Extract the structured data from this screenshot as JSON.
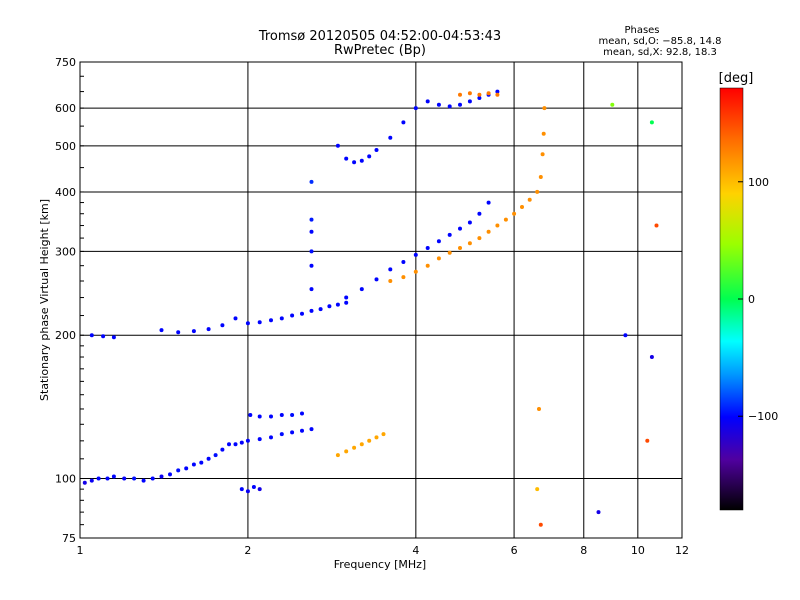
{
  "chart_data": {
    "type": "scatter",
    "title": "Tromsø 20120505 04:52:00-04:53:43",
    "subtitle": "RwPretec (Bp)",
    "xlabel": "Frequency [MHz]",
    "ylabel": "Stationary phase Virtual Height [km]",
    "x_scale": "log",
    "y_scale": "log",
    "xlim": [
      1,
      12
    ],
    "ylim": [
      75,
      750
    ],
    "x_ticks": [
      1,
      2,
      4,
      6,
      8,
      10,
      12
    ],
    "x_tick_labels": [
      "1",
      "2",
      "4",
      "6",
      "8",
      "10",
      "12"
    ],
    "y_ticks": [
      75,
      100,
      200,
      300,
      400,
      500,
      600,
      750
    ],
    "y_tick_labels": [
      "75",
      "100",
      "200",
      "300",
      "400",
      "500",
      "600",
      "750"
    ],
    "grid": true,
    "phases_box": {
      "heading": "Phases",
      "line1": "mean, sd,O: −85.8, 14.8",
      "line2": "mean, sd,X:  92.8, 18.3"
    },
    "colorbar": {
      "label": "[deg]",
      "range": [
        -180,
        180
      ],
      "ticks": [
        100,
        0,
        -100
      ],
      "tick_labels": [
        "100",
        "0",
        "−100"
      ],
      "placement": "right"
    },
    "points": [
      [
        1.02,
        98,
        -110
      ],
      [
        1.05,
        99,
        -105
      ],
      [
        1.08,
        100,
        -100
      ],
      [
        1.12,
        100,
        -100
      ],
      [
        1.15,
        101,
        -100
      ],
      [
        1.2,
        100,
        -102
      ],
      [
        1.25,
        100,
        -98
      ],
      [
        1.3,
        99,
        -100
      ],
      [
        1.35,
        100,
        -100
      ],
      [
        1.4,
        101,
        -105
      ],
      [
        1.45,
        102,
        -100
      ],
      [
        1.5,
        104,
        -98
      ],
      [
        1.55,
        105,
        -100
      ],
      [
        1.6,
        107,
        -100
      ],
      [
        1.65,
        108,
        -100
      ],
      [
        1.7,
        110,
        -100
      ],
      [
        1.75,
        112,
        -98
      ],
      [
        1.8,
        115,
        -100
      ],
      [
        1.85,
        118,
        -100
      ],
      [
        1.9,
        118,
        -100
      ],
      [
        1.95,
        119,
        -102
      ],
      [
        2.0,
        120,
        -100
      ],
      [
        2.1,
        121,
        -100
      ],
      [
        2.2,
        122,
        -100
      ],
      [
        2.3,
        124,
        -98
      ],
      [
        2.4,
        125,
        -100
      ],
      [
        2.5,
        126,
        -100
      ],
      [
        2.6,
        127,
        -100
      ],
      [
        1.95,
        95,
        -100
      ],
      [
        2.0,
        94,
        -105
      ],
      [
        2.05,
        96,
        -100
      ],
      [
        2.1,
        95,
        -110
      ],
      [
        2.02,
        136,
        -100
      ],
      [
        2.1,
        135,
        -100
      ],
      [
        2.2,
        135,
        -100
      ],
      [
        2.3,
        136,
        -100
      ],
      [
        2.4,
        136,
        -98
      ],
      [
        2.5,
        137,
        -100
      ],
      [
        2.9,
        112,
        110
      ],
      [
        3.0,
        114,
        110
      ],
      [
        3.1,
        116,
        110
      ],
      [
        3.2,
        118,
        110
      ],
      [
        3.3,
        120,
        110
      ],
      [
        3.4,
        122,
        110
      ],
      [
        3.5,
        124,
        110
      ],
      [
        1.4,
        205,
        -100
      ],
      [
        1.5,
        203,
        -100
      ],
      [
        1.6,
        204,
        -100
      ],
      [
        1.7,
        206,
        -100
      ],
      [
        1.8,
        210,
        -100
      ],
      [
        1.9,
        217,
        -100
      ],
      [
        2.0,
        212,
        -100
      ],
      [
        2.1,
        213,
        -100
      ],
      [
        2.2,
        215,
        -100
      ],
      [
        2.3,
        217,
        -100
      ],
      [
        2.4,
        220,
        -100
      ],
      [
        2.5,
        222,
        -100
      ],
      [
        2.6,
        225,
        -100
      ],
      [
        2.7,
        227,
        -100
      ],
      [
        2.8,
        230,
        -100
      ],
      [
        2.9,
        232,
        -100
      ],
      [
        3.0,
        234,
        -100
      ],
      [
        2.6,
        250,
        -100
      ],
      [
        2.6,
        300,
        -98
      ],
      [
        2.6,
        350,
        -95
      ],
      [
        2.6,
        420,
        -90
      ],
      [
        2.6,
        280,
        -100
      ],
      [
        2.6,
        330,
        -100
      ],
      [
        3.0,
        240,
        -100
      ],
      [
        3.2,
        250,
        -100
      ],
      [
        3.4,
        262,
        -100
      ],
      [
        3.6,
        275,
        -100
      ],
      [
        3.8,
        285,
        -100
      ],
      [
        4.0,
        295,
        -100
      ],
      [
        4.2,
        305,
        -100
      ],
      [
        4.4,
        315,
        -100
      ],
      [
        4.6,
        325,
        -100
      ],
      [
        4.8,
        335,
        -100
      ],
      [
        5.0,
        345,
        -100
      ],
      [
        5.2,
        360,
        -100
      ],
      [
        5.4,
        380,
        -100
      ],
      [
        3.6,
        260,
        120
      ],
      [
        3.8,
        265,
        120
      ],
      [
        4.0,
        272,
        120
      ],
      [
        4.2,
        280,
        120
      ],
      [
        4.4,
        290,
        120
      ],
      [
        4.6,
        298,
        120
      ],
      [
        4.8,
        305,
        120
      ],
      [
        5.0,
        312,
        120
      ],
      [
        5.2,
        320,
        120
      ],
      [
        5.4,
        330,
        120
      ],
      [
        5.6,
        340,
        120
      ],
      [
        5.8,
        350,
        120
      ],
      [
        6.0,
        360,
        120
      ],
      [
        6.2,
        372,
        120
      ],
      [
        6.4,
        385,
        120
      ],
      [
        6.6,
        400,
        120
      ],
      [
        6.7,
        430,
        120
      ],
      [
        6.75,
        480,
        120
      ],
      [
        6.78,
        530,
        120
      ],
      [
        6.8,
        600,
        120
      ],
      [
        2.9,
        500,
        -100
      ],
      [
        3.0,
        470,
        -100
      ],
      [
        3.1,
        462,
        -100
      ],
      [
        3.2,
        465,
        -100
      ],
      [
        3.3,
        475,
        -100
      ],
      [
        3.4,
        490,
        -100
      ],
      [
        3.6,
        520,
        -100
      ],
      [
        3.8,
        560,
        -100
      ],
      [
        4.0,
        600,
        -100
      ],
      [
        4.2,
        620,
        -100
      ],
      [
        4.4,
        610,
        -100
      ],
      [
        4.6,
        605,
        -100
      ],
      [
        4.8,
        610,
        -100
      ],
      [
        5.0,
        620,
        -100
      ],
      [
        5.2,
        630,
        -100
      ],
      [
        5.4,
        640,
        -100
      ],
      [
        5.6,
        650,
        -100
      ],
      [
        4.8,
        640,
        130
      ],
      [
        5.0,
        645,
        130
      ],
      [
        5.2,
        640,
        130
      ],
      [
        5.4,
        645,
        130
      ],
      [
        5.6,
        640,
        130
      ],
      [
        1.05,
        200,
        -100
      ],
      [
        1.1,
        199,
        -100
      ],
      [
        1.15,
        198,
        -100
      ],
      [
        6.6,
        95,
        100
      ],
      [
        6.65,
        140,
        120
      ],
      [
        6.7,
        80,
        150
      ],
      [
        9.0,
        610,
        40
      ],
      [
        10.6,
        560,
        0
      ],
      [
        10.6,
        180,
        -110
      ],
      [
        10.4,
        120,
        150
      ],
      [
        8.5,
        85,
        -110
      ],
      [
        9.5,
        200,
        -100
      ],
      [
        10.8,
        340,
        150
      ]
    ]
  }
}
